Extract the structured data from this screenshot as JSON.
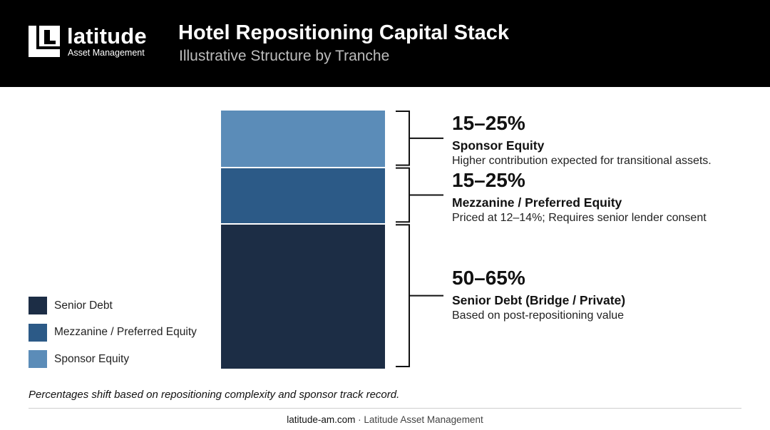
{
  "header": {
    "brand_name": "latitude",
    "brand_sub": "Asset Management",
    "title": "Hotel Repositioning Capital Stack",
    "subtitle": "Illustrative Structure by Tranche"
  },
  "chart_data": {
    "type": "bar",
    "stacked": true,
    "title": "Hotel Repositioning Capital Stack",
    "subtitle": "Illustrative Structure by Tranche",
    "tranches": [
      {
        "name": "Sponsor Equity",
        "range_label": "15–25%",
        "range": [
          15,
          25
        ],
        "shown_share": 22,
        "note": "Higher contribution expected for transitional assets.",
        "color": "#5b8cb8"
      },
      {
        "name": "Mezzanine / Preferred Equity",
        "range_label": "15–25%",
        "range": [
          15,
          25
        ],
        "shown_share": 22,
        "note": "Priced at 12–14%; Requires senior lender consent",
        "color": "#2c5a87"
      },
      {
        "name": "Senior Debt (Bridge / Private)",
        "range_label": "50–65%",
        "range": [
          50,
          65
        ],
        "shown_share": 56,
        "note": "Based on post-repositioning value",
        "color": "#1c2d45"
      }
    ],
    "legend": [
      {
        "label": "Senior Debt",
        "color": "#1c2d45"
      },
      {
        "label": "Mezzanine / Preferred Equity",
        "color": "#2c5a87"
      },
      {
        "label": "Sponsor Equity",
        "color": "#5b8cb8"
      }
    ],
    "legend_position": "bottom-left"
  },
  "footnote": "Percentages shift based on repositioning complexity and sponsor track record.",
  "footer": {
    "url": "latitude-am.com",
    "separator": " · ",
    "company": "Latitude Asset Management"
  }
}
